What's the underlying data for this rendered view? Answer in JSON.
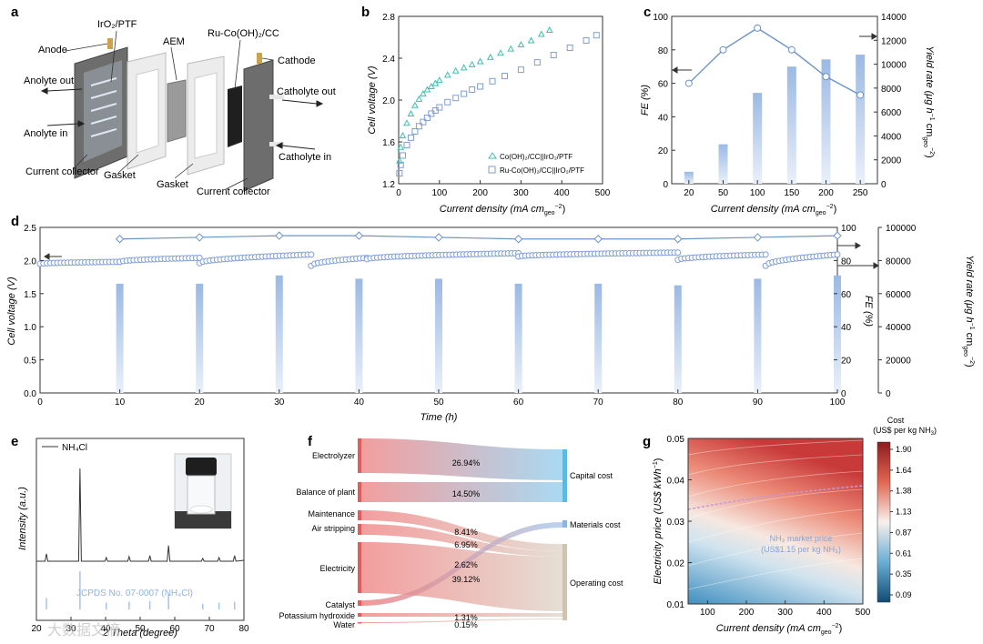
{
  "panels": {
    "a": "a",
    "b": "b",
    "c": "c",
    "d": "d",
    "e": "e",
    "f": "f",
    "g": "g"
  },
  "schematic_a": {
    "labels": {
      "iro2": "IrO₂/PTF",
      "anode": "Anode",
      "aem": "AEM",
      "ru_co": "Ru-Co(OH)₂/CC",
      "cathode": "Cathode",
      "anolyte_out": "Anolyte out",
      "anolyte_in": "Anolyte in",
      "catholyte_out": "Catholyte out",
      "catholyte_in": "Catholyte in",
      "current_collector_left": "Current collector",
      "gasket_left": "Gasket",
      "gasket_right": "Gasket",
      "current_collector_right": "Current collector"
    }
  },
  "chart_data": [
    {
      "panel": "b",
      "type": "scatter",
      "xlabel": "Current density (mA cm",
      "xlabel_sub": "geo",
      "xlabel_sup": "−2",
      "xlabel_tail": ")",
      "ylabel": "Cell voltage (V)",
      "xlim": [
        0,
        500
      ],
      "ylim": [
        1.2,
        2.8
      ],
      "xticks": [
        "0",
        "100",
        "200",
        "300",
        "400",
        "500"
      ],
      "yticks": [
        "1.2",
        "1.6",
        "2.0",
        "2.4",
        "2.8"
      ],
      "series": [
        {
          "name": "Co(OH)₂/CC||IrO₂/PTF",
          "marker": "triangle",
          "color": "#3fbfb0",
          "x": [
            2,
            5,
            10,
            20,
            30,
            40,
            50,
            60,
            70,
            80,
            90,
            100,
            120,
            140,
            160,
            180,
            200,
            225,
            250,
            275,
            300,
            325,
            350,
            370
          ],
          "y": [
            1.42,
            1.55,
            1.66,
            1.78,
            1.87,
            1.95,
            2.01,
            2.06,
            2.1,
            2.13,
            2.16,
            2.19,
            2.24,
            2.28,
            2.31,
            2.34,
            2.37,
            2.41,
            2.45,
            2.49,
            2.53,
            2.57,
            2.63,
            2.67
          ]
        },
        {
          "name": "Ru-Co(OH)₂/CC||IrO₂/PTF",
          "marker": "square",
          "color": "#7e9ed6",
          "x": [
            2,
            5,
            10,
            20,
            30,
            40,
            50,
            60,
            70,
            80,
            90,
            100,
            120,
            140,
            160,
            180,
            200,
            230,
            260,
            300,
            340,
            380,
            420,
            460,
            485
          ],
          "y": [
            1.3,
            1.38,
            1.47,
            1.57,
            1.64,
            1.7,
            1.75,
            1.79,
            1.83,
            1.87,
            1.9,
            1.93,
            1.98,
            2.02,
            2.06,
            2.1,
            2.13,
            2.18,
            2.23,
            2.29,
            2.36,
            2.43,
            2.5,
            2.57,
            2.62
          ]
        }
      ]
    },
    {
      "panel": "c",
      "type": "bar",
      "xlabel": "Current density (mA cm",
      "xlabel_sub": "geo",
      "xlabel_sup": "−2",
      "xlabel_tail": ")",
      "ylabel": "FE (%)",
      "ylabel2": "Yield rate (μg h",
      "ylabel2_sup1": "−1",
      "ylabel2_mid": " cm",
      "ylabel2_sub": "geo",
      "ylabel2_sup2": "−2",
      "ylabel2_tail": ")",
      "categories": [
        "20",
        "50",
        "100",
        "150",
        "200",
        "250"
      ],
      "ylim": [
        0,
        100
      ],
      "ylim2": [
        0,
        14000
      ],
      "yticks": [
        "0",
        "20",
        "40",
        "60",
        "80",
        "100"
      ],
      "yticks2": [
        "0",
        "2000",
        "4000",
        "6000",
        "8000",
        "10000",
        "12000",
        "14000"
      ],
      "series": [
        {
          "axis": "left",
          "kind": "line",
          "values": [
            60,
            80,
            93,
            80,
            64,
            53
          ]
        },
        {
          "axis": "right",
          "kind": "bar",
          "values": [
            1000,
            3300,
            7600,
            9800,
            10400,
            10800
          ]
        }
      ]
    },
    {
      "panel": "d",
      "type": "scatter",
      "xlabel": "Time (h)",
      "ylabel": "Cell voltage (V)",
      "ylabel2": "FE (%)",
      "ylabel3": "Yield rate (μg h",
      "ylabel3_sup1": "−1",
      "ylabel3_mid": " cm",
      "ylabel3_sub": "geo",
      "ylabel3_sup2": "−2",
      "ylabel3_tail": ")",
      "xlim": [
        0,
        100
      ],
      "ylim": [
        0,
        2.5
      ],
      "ylim_fe": [
        0,
        100
      ],
      "ylim_yield": [
        0,
        100000
      ],
      "xticks": [
        "0",
        "10",
        "20",
        "30",
        "40",
        "50",
        "60",
        "70",
        "80",
        "90",
        "100"
      ],
      "yticks": [
        "0.0",
        "0.5",
        "1.0",
        "1.5",
        "2.0",
        "2.5"
      ],
      "yticks_fe": [
        "0",
        "20",
        "40",
        "60",
        "80",
        "100"
      ],
      "yticks_yield": [
        "0",
        "20000",
        "40000",
        "60000",
        "80000",
        "100000"
      ],
      "fe": {
        "x": [
          10,
          20,
          30,
          40,
          50,
          60,
          70,
          80,
          90,
          100
        ],
        "y": [
          93,
          94,
          95,
          95,
          94,
          93,
          93,
          93,
          94,
          95
        ]
      },
      "yield": {
        "x": [
          10,
          20,
          30,
          40,
          50,
          60,
          70,
          80,
          90,
          100
        ],
        "y": [
          66000,
          66000,
          71000,
          69000,
          69000,
          66000,
          66000,
          65000,
          69000,
          71000
        ]
      },
      "voltage_segments": [
        {
          "x0": 0,
          "x1": 10,
          "v0": 1.95,
          "v1": 1.98
        },
        {
          "x0": 10,
          "x1": 20,
          "v0": 1.98,
          "v1": 2.04
        },
        {
          "x0": 20,
          "x1": 34,
          "v0": 1.96,
          "v1": 2.09
        },
        {
          "x0": 34,
          "x1": 41,
          "v0": 1.92,
          "v1": 2.04
        },
        {
          "x0": 41,
          "x1": 60,
          "v0": 2.02,
          "v1": 2.11
        },
        {
          "x0": 60,
          "x1": 80,
          "v0": 2.06,
          "v1": 2.12
        },
        {
          "x0": 80,
          "x1": 91,
          "v0": 2.01,
          "v1": 2.09
        },
        {
          "x0": 91,
          "x1": 100,
          "v0": 1.92,
          "v1": 2.09
        }
      ]
    },
    {
      "panel": "e",
      "type": "line",
      "xlabel": "2 Theta (degree)",
      "ylabel": "Intensity (a.u.)",
      "xlim": [
        20,
        80
      ],
      "xticks": [
        "20",
        "30",
        "40",
        "50",
        "60",
        "70",
        "80"
      ],
      "legend": "NH₄Cl",
      "reference_label": "JCPDS No. 07-0007 (NH₄Cl)",
      "peaks": {
        "x": [
          22.9,
          32.6,
          40.2,
          46.8,
          52.8,
          58.2,
          68.1,
          72.8,
          77.3
        ],
        "y": [
          0.08,
          1.0,
          0.04,
          0.05,
          0.06,
          0.17,
          0.03,
          0.04,
          0.06
        ]
      },
      "reference_peaks": {
        "x": [
          22.9,
          32.6,
          40.2,
          46.8,
          52.8,
          58.2,
          68.1,
          72.8,
          77.3
        ],
        "y": [
          0.3,
          1.0,
          0.18,
          0.2,
          0.22,
          0.4,
          0.15,
          0.18,
          0.2
        ]
      }
    },
    {
      "panel": "f",
      "type": "sankey",
      "sources": [
        {
          "name": "Electrolyzer",
          "value": 26.94,
          "target": "Capital cost"
        },
        {
          "name": "Balance of plant",
          "value": 14.5,
          "target": "Capital cost"
        },
        {
          "name": "Maintenance",
          "value": null,
          "target": "Operating cost"
        },
        {
          "name": "Air stripping",
          "value": 8.41,
          "target": "Operating cost"
        },
        {
          "name": "Electricity",
          "value": 39.12,
          "target": "Operating cost"
        },
        {
          "name": "Catalyst",
          "value": null,
          "target": "Materials cost"
        },
        {
          "name": "Potassium hydroxide",
          "value": 1.31,
          "target": "Operating cost"
        },
        {
          "name": "Water",
          "value": 0.15,
          "target": "Operating cost"
        }
      ],
      "percent_labels": [
        "26.94%",
        "14.50%",
        "8.41%",
        "6.95%",
        "2.62%",
        "39.12%",
        "1.31%",
        "0.15%"
      ],
      "targets": [
        "Capital cost",
        "Materials cost",
        "Operating cost"
      ]
    },
    {
      "panel": "g",
      "type": "heatmap",
      "xlabel": "Current density (mA cm",
      "xlabel_sub": "geo",
      "xlabel_sup": "−2",
      "xlabel_tail": ")",
      "ylabel": "Electricity price (US$ kWh",
      "ylabel_sup": "−1",
      "ylabel_tail": ")",
      "xlim": [
        50,
        500
      ],
      "ylim": [
        0.01,
        0.05
      ],
      "xticks": [
        "100",
        "200",
        "300",
        "400",
        "500"
      ],
      "yticks": [
        "0.01",
        "0.02",
        "0.03",
        "0.04",
        "0.05"
      ],
      "colorbar_title_1": "Cost",
      "colorbar_title_2": "(US$ per kg NH",
      "colorbar_title_sub": "3",
      "colorbar_title_tail": ")",
      "colorbar_ticks": [
        "1.90",
        "1.64",
        "1.38",
        "1.13",
        "0.87",
        "0.61",
        "0.35",
        "0.09"
      ],
      "colorbar_range": [
        0.09,
        1.9
      ],
      "annotation_1": "NH₃ market price",
      "annotation_2": "(US$1.15 per kg NH₃)"
    }
  ],
  "watermark": "大数据文摘",
  "colors": {
    "teal": "#3fbfb0",
    "blue": "#7e9ed6",
    "line": "#6c93c9",
    "bar": "#a9c2e6",
    "sankey_red": "#ea6b6b",
    "sankey_blue": "#8dc6ea",
    "sankey_grey": "#d7cfc4"
  }
}
